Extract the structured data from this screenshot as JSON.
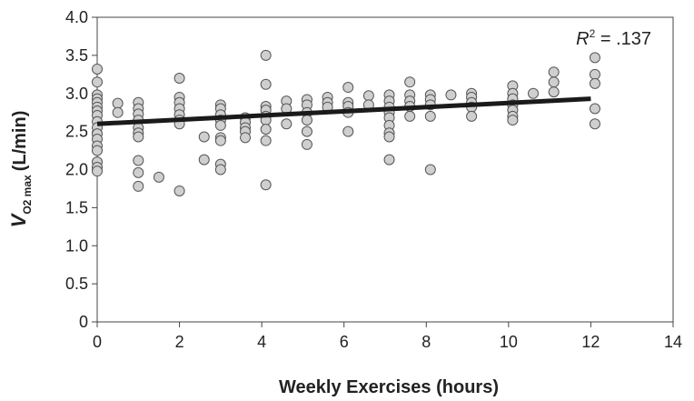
{
  "chart_data": {
    "type": "scatter",
    "title": "",
    "xlabel": "Weekly Exercises (hours)",
    "ylabel": {
      "main": "V",
      "subscript": "O2 max",
      "unit": "(L/min)"
    },
    "xlim": [
      0,
      14
    ],
    "ylim": [
      0,
      4.0
    ],
    "x_ticks": [
      "0",
      "2",
      "4",
      "6",
      "8",
      "10",
      "12",
      "14"
    ],
    "y_ticks": [
      "0",
      "0.5",
      "1.0",
      "1.5",
      "2.0",
      "2.5",
      "3.0",
      "3.5",
      "4.0"
    ],
    "grid": false,
    "legend": "none",
    "annotation": {
      "italic": "R",
      "sup": "2",
      "rest": " = .137"
    },
    "trendline": {
      "x": [
        0,
        12
      ],
      "y": [
        2.6,
        2.93
      ]
    },
    "colors": {
      "marker_fill": "#cfcfcf",
      "marker_stroke": "#555555",
      "trendline": "#1a1a1a",
      "axis": "#444444"
    },
    "points": [
      {
        "x": 0,
        "y": 3.32
      },
      {
        "x": 0,
        "y": 3.15
      },
      {
        "x": 0,
        "y": 2.98
      },
      {
        "x": 0,
        "y": 2.93
      },
      {
        "x": 0,
        "y": 2.88
      },
      {
        "x": 0,
        "y": 2.82
      },
      {
        "x": 0,
        "y": 2.77
      },
      {
        "x": 0,
        "y": 2.71
      },
      {
        "x": 0,
        "y": 2.63
      },
      {
        "x": 0,
        "y": 2.55
      },
      {
        "x": 0,
        "y": 2.47
      },
      {
        "x": 0,
        "y": 2.4
      },
      {
        "x": 0,
        "y": 2.31
      },
      {
        "x": 0,
        "y": 2.25
      },
      {
        "x": 0,
        "y": 2.1
      },
      {
        "x": 0,
        "y": 2.03
      },
      {
        "x": 0,
        "y": 1.98
      },
      {
        "x": 0.5,
        "y": 2.87
      },
      {
        "x": 0.5,
        "y": 2.75
      },
      {
        "x": 1,
        "y": 2.88
      },
      {
        "x": 1,
        "y": 2.8
      },
      {
        "x": 1,
        "y": 2.73
      },
      {
        "x": 1,
        "y": 2.65
      },
      {
        "x": 1,
        "y": 2.55
      },
      {
        "x": 1,
        "y": 2.48
      },
      {
        "x": 1,
        "y": 2.43
      },
      {
        "x": 1,
        "y": 2.12
      },
      {
        "x": 1,
        "y": 1.96
      },
      {
        "x": 1,
        "y": 1.78
      },
      {
        "x": 1.5,
        "y": 1.9
      },
      {
        "x": 2,
        "y": 3.2
      },
      {
        "x": 2,
        "y": 2.95
      },
      {
        "x": 2,
        "y": 2.88
      },
      {
        "x": 2,
        "y": 2.8
      },
      {
        "x": 2,
        "y": 2.72
      },
      {
        "x": 2,
        "y": 2.65
      },
      {
        "x": 2,
        "y": 2.6
      },
      {
        "x": 2,
        "y": 1.72
      },
      {
        "x": 2.6,
        "y": 2.43
      },
      {
        "x": 2.6,
        "y": 2.13
      },
      {
        "x": 3,
        "y": 2.85
      },
      {
        "x": 3,
        "y": 2.8
      },
      {
        "x": 3,
        "y": 2.72
      },
      {
        "x": 3,
        "y": 2.65
      },
      {
        "x": 3,
        "y": 2.58
      },
      {
        "x": 3,
        "y": 2.42
      },
      {
        "x": 3,
        "y": 2.38
      },
      {
        "x": 3,
        "y": 2.07
      },
      {
        "x": 3,
        "y": 2.0
      },
      {
        "x": 3.6,
        "y": 2.68
      },
      {
        "x": 3.6,
        "y": 2.62
      },
      {
        "x": 3.6,
        "y": 2.55
      },
      {
        "x": 3.6,
        "y": 2.5
      },
      {
        "x": 3.6,
        "y": 2.42
      },
      {
        "x": 4.1,
        "y": 3.5
      },
      {
        "x": 4.1,
        "y": 3.12
      },
      {
        "x": 4.1,
        "y": 2.83
      },
      {
        "x": 4.1,
        "y": 2.78
      },
      {
        "x": 4.1,
        "y": 2.7
      },
      {
        "x": 4.1,
        "y": 2.65
      },
      {
        "x": 4.1,
        "y": 2.53
      },
      {
        "x": 4.1,
        "y": 2.38
      },
      {
        "x": 4.1,
        "y": 1.8
      },
      {
        "x": 4.6,
        "y": 2.9
      },
      {
        "x": 4.6,
        "y": 2.8
      },
      {
        "x": 4.6,
        "y": 2.6
      },
      {
        "x": 5.1,
        "y": 2.92
      },
      {
        "x": 5.1,
        "y": 2.85
      },
      {
        "x": 5.1,
        "y": 2.75
      },
      {
        "x": 5.1,
        "y": 2.65
      },
      {
        "x": 5.1,
        "y": 2.5
      },
      {
        "x": 5.1,
        "y": 2.33
      },
      {
        "x": 5.6,
        "y": 2.95
      },
      {
        "x": 5.6,
        "y": 2.88
      },
      {
        "x": 5.6,
        "y": 2.82
      },
      {
        "x": 6.1,
        "y": 3.08
      },
      {
        "x": 6.1,
        "y": 2.88
      },
      {
        "x": 6.1,
        "y": 2.83
      },
      {
        "x": 6.1,
        "y": 2.75
      },
      {
        "x": 6.1,
        "y": 2.5
      },
      {
        "x": 6.6,
        "y": 2.97
      },
      {
        "x": 6.6,
        "y": 2.85
      },
      {
        "x": 7.1,
        "y": 2.98
      },
      {
        "x": 7.1,
        "y": 2.9
      },
      {
        "x": 7.1,
        "y": 2.82
      },
      {
        "x": 7.1,
        "y": 2.75
      },
      {
        "x": 7.1,
        "y": 2.68
      },
      {
        "x": 7.1,
        "y": 2.58
      },
      {
        "x": 7.1,
        "y": 2.48
      },
      {
        "x": 7.1,
        "y": 2.43
      },
      {
        "x": 7.1,
        "y": 2.13
      },
      {
        "x": 7.6,
        "y": 3.15
      },
      {
        "x": 7.6,
        "y": 2.98
      },
      {
        "x": 7.6,
        "y": 2.9
      },
      {
        "x": 7.6,
        "y": 2.83
      },
      {
        "x": 7.6,
        "y": 2.7
      },
      {
        "x": 8.1,
        "y": 2.98
      },
      {
        "x": 8.1,
        "y": 2.92
      },
      {
        "x": 8.1,
        "y": 2.85
      },
      {
        "x": 8.1,
        "y": 2.7
      },
      {
        "x": 8.1,
        "y": 2.0
      },
      {
        "x": 8.6,
        "y": 2.98
      },
      {
        "x": 9.1,
        "y": 3.0
      },
      {
        "x": 9.1,
        "y": 2.95
      },
      {
        "x": 9.1,
        "y": 2.88
      },
      {
        "x": 9.1,
        "y": 2.82
      },
      {
        "x": 9.1,
        "y": 2.7
      },
      {
        "x": 10.1,
        "y": 3.1
      },
      {
        "x": 10.1,
        "y": 3.0
      },
      {
        "x": 10.1,
        "y": 2.93
      },
      {
        "x": 10.1,
        "y": 2.85
      },
      {
        "x": 10.1,
        "y": 2.78
      },
      {
        "x": 10.1,
        "y": 2.7
      },
      {
        "x": 10.1,
        "y": 2.65
      },
      {
        "x": 10.6,
        "y": 3.0
      },
      {
        "x": 11.1,
        "y": 3.28
      },
      {
        "x": 11.1,
        "y": 3.15
      },
      {
        "x": 11.1,
        "y": 3.02
      },
      {
        "x": 12.1,
        "y": 3.47
      },
      {
        "x": 12.1,
        "y": 3.25
      },
      {
        "x": 12.1,
        "y": 3.13
      },
      {
        "x": 12.1,
        "y": 2.8
      },
      {
        "x": 12.1,
        "y": 2.6
      }
    ]
  }
}
